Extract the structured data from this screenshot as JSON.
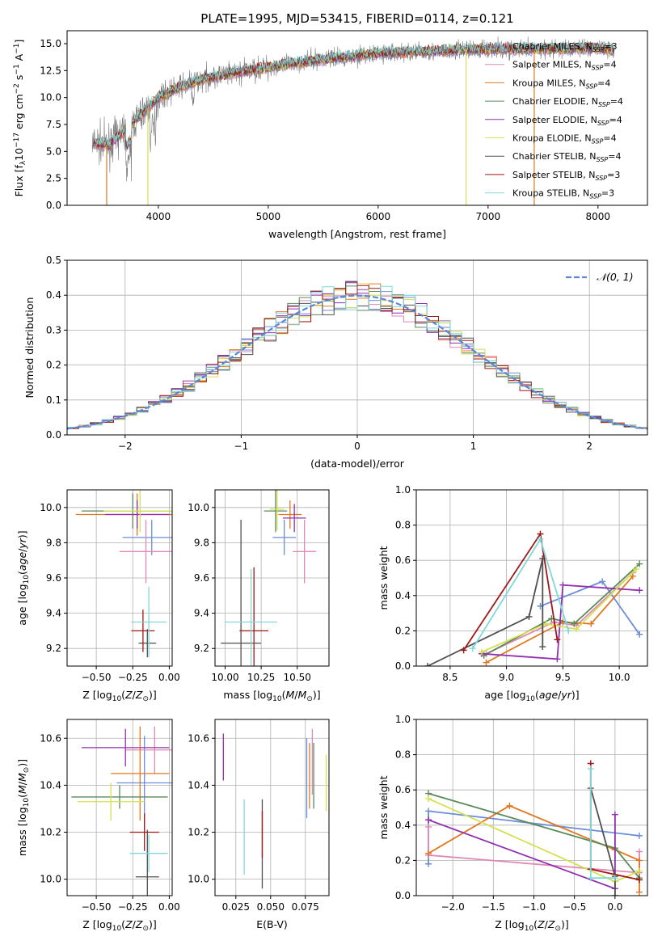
{
  "title": "PLATE=1995, MJD=53415, FIBERID=0114, z=0.121",
  "models": [
    {
      "name": "Chabrier MILES, N_SSP=3",
      "color": "#6a8ed8"
    },
    {
      "name": "Salpeter MILES, N_SSP=4",
      "color": "#e088b8"
    },
    {
      "name": "Kroupa MILES, N_SSP=4",
      "color": "#e07820"
    },
    {
      "name": "Chabrier ELODIE, N_SSP=4",
      "color": "#5a8a5a"
    },
    {
      "name": "Salpeter ELODIE, N_SSP=4",
      "color": "#9030b0"
    },
    {
      "name": "Kroupa ELODIE, N_SSP=4",
      "color": "#d4e050"
    },
    {
      "name": "Chabrier STELIB, N_SSP=4",
      "color": "#505050"
    },
    {
      "name": "Salpeter STELIB, N_SSP=3",
      "color": "#a01818"
    },
    {
      "name": "Kroupa STELIB, N_SSP=3",
      "color": "#80d8d8"
    }
  ],
  "legend_entries": [
    {
      "main": "Chabrier MILES, N",
      "sub": "SSP",
      "tail": "=3"
    },
    {
      "main": "Salpeter MILES, N",
      "sub": "SSP",
      "tail": "=4"
    },
    {
      "main": "Kroupa MILES, N",
      "sub": "SSP",
      "tail": "=4"
    },
    {
      "main": "Chabrier ELODIE, N",
      "sub": "SSP",
      "tail": "=4"
    },
    {
      "main": "Salpeter ELODIE, N",
      "sub": "SSP",
      "tail": "=4"
    },
    {
      "main": "Kroupa ELODIE, N",
      "sub": "SSP",
      "tail": "=4"
    },
    {
      "main": "Chabrier STELIB, N",
      "sub": "SSP",
      "tail": "=4"
    },
    {
      "main": "Salpeter STELIB, N",
      "sub": "SSP",
      "tail": "=3"
    },
    {
      "main": "Kroupa STELIB, N",
      "sub": "SSP",
      "tail": "=3"
    }
  ],
  "chart_data": [
    {
      "id": "spectrum",
      "type": "line",
      "title": "PLATE=1995, MJD=53415, FIBERID=0114, z=0.121",
      "xlabel": "wavelength [Angstrom, rest frame]",
      "ylabel": "Flux [f_λ 10^-17 erg cm^-2 s^-1 A^-1]",
      "xlim": [
        3170,
        8450
      ],
      "ylim": [
        0,
        16.2
      ],
      "xticks": [
        4000,
        5000,
        6000,
        7000,
        8000
      ],
      "yticks": [
        0,
        2.5,
        5,
        7.5,
        10,
        12.5,
        15
      ],
      "ytick_labels": [
        "0.0",
        "2.5",
        "5.0",
        "7.5",
        "10.0",
        "12.5",
        "15.0"
      ],
      "data_observed": "grey noisy spectrum, ~5.5 at 3400 A rising to ~14 at 5000 A and ~15 by 7500 A",
      "curve_points": [
        [
          3400,
          5.8
        ],
        [
          3550,
          5.6
        ],
        [
          3700,
          7
        ],
        [
          3850,
          8.5
        ],
        [
          4000,
          10
        ],
        [
          4200,
          11
        ],
        [
          4400,
          11.7
        ],
        [
          4700,
          12.3
        ],
        [
          5000,
          12.8
        ],
        [
          5300,
          13.3
        ],
        [
          5700,
          13.8
        ],
        [
          6000,
          14.1
        ],
        [
          6500,
          14.3
        ],
        [
          7000,
          14.5
        ],
        [
          7500,
          14.5
        ],
        [
          8000,
          14.6
        ],
        [
          8150,
          14.4
        ]
      ],
      "grid": false,
      "legend": "upper right"
    },
    {
      "id": "residuals",
      "type": "histogram",
      "xlabel": "(data-model)/error",
      "ylabel": "Normed distribution",
      "xlim": [
        -2.5,
        2.5
      ],
      "ylim": [
        0,
        0.5
      ],
      "xticks": [
        -2,
        -1,
        0,
        1,
        2
      ],
      "xtick_labels": [
        "−2",
        "−1",
        "0",
        "1",
        "2"
      ],
      "yticks": [
        0,
        0.1,
        0.2,
        0.3,
        0.4,
        0.5
      ],
      "ytick_labels": [
        "0.0",
        "0.1",
        "0.2",
        "0.3",
        "0.4",
        "0.5"
      ],
      "bin_width": 0.1,
      "gaussian_label": "𝒩(0, 1)",
      "gaussian_color": "#5b86d6",
      "grid": true,
      "legend": "upper right"
    },
    {
      "id": "age_vs_Z",
      "type": "errorbar",
      "xlabel": "Z [log10(Z/Z⊙)]",
      "ylabel": "age [log10(age/yr)]",
      "xlim": [
        -0.7,
        0.02
      ],
      "ylim": [
        9.1,
        10.1
      ],
      "xticks": [
        -0.5,
        -0.25,
        0.0
      ],
      "xtick_labels": [
        "−0.50",
        "−0.25",
        "0.00"
      ],
      "yticks": [
        9.2,
        9.4,
        9.6,
        9.8,
        10.0
      ],
      "ytick_labels": [
        "9.2",
        "9.4",
        "9.6",
        "9.8",
        "10.0"
      ],
      "points": [
        {
          "x": -0.12,
          "xerr": 0.2,
          "y": 9.83,
          "yerr": 0.1
        },
        {
          "x": -0.16,
          "xerr": 0.18,
          "y": 9.75,
          "yerr": 0.18
        },
        {
          "x": -0.22,
          "xerr": 0.42,
          "y": 9.96,
          "yerr": 0.12
        },
        {
          "x": -0.25,
          "xerr": 0.35,
          "y": 9.98,
          "yerr": 0.1
        },
        {
          "x": -0.22,
          "xerr": 0.22,
          "y": 9.96,
          "yerr": 0.08
        },
        {
          "x": -0.2,
          "xerr": 0.25,
          "y": 9.98,
          "yerr": 0.12
        },
        {
          "x": -0.15,
          "xerr": 0.06,
          "y": 9.23,
          "yerr": 0.08
        },
        {
          "x": -0.18,
          "xerr": 0.08,
          "y": 9.3,
          "yerr": 0.12
        },
        {
          "x": -0.14,
          "xerr": 0.12,
          "y": 9.35,
          "yerr": 0.2
        }
      ],
      "grid": true
    },
    {
      "id": "age_vs_mass",
      "type": "errorbar",
      "xlabel": "mass [log10(M/M⊙)]",
      "ylabel": "",
      "xlim": [
        9.93,
        10.72
      ],
      "ylim": [
        9.1,
        10.1
      ],
      "xticks": [
        10.0,
        10.25,
        10.5
      ],
      "xtick_labels": [
        "10.00",
        "10.25",
        "10.50"
      ],
      "yticks": [
        9.2,
        9.4,
        9.6,
        9.8,
        10.0
      ],
      "ytick_labels": [
        "9.2",
        "9.4",
        "9.6",
        "9.8",
        "10.0"
      ],
      "points": [
        {
          "x": 10.41,
          "xerr": 0.08,
          "y": 9.83,
          "yerr": 0.1
        },
        {
          "x": 10.55,
          "xerr": 0.08,
          "y": 9.75,
          "yerr": 0.18
        },
        {
          "x": 10.45,
          "xerr": 0.08,
          "y": 9.96,
          "yerr": 0.08
        },
        {
          "x": 10.35,
          "xerr": 0.08,
          "y": 9.98,
          "yerr": 0.12
        },
        {
          "x": 10.48,
          "xerr": 0.08,
          "y": 9.94,
          "yerr": 0.08
        },
        {
          "x": 10.36,
          "xerr": 0.05,
          "y": 9.99,
          "yerr": 0.12
        },
        {
          "x": 10.11,
          "xerr": 0.14,
          "y": 9.23,
          "yerr": 0.7
        },
        {
          "x": 10.2,
          "xerr": 0.1,
          "y": 9.3,
          "yerr": 0.36
        },
        {
          "x": 10.18,
          "xerr": 0.18,
          "y": 9.35,
          "yerr": 0.3
        }
      ],
      "grid": true
    },
    {
      "id": "weight_vs_age",
      "type": "line",
      "xlabel": "age [log10(age/yr)]",
      "ylabel": "mass weight",
      "xlim": [
        8.2,
        10.25
      ],
      "ylim": [
        0,
        1
      ],
      "xticks": [
        8.5,
        9.0,
        9.5,
        10.0
      ],
      "xtick_labels": [
        "8.5",
        "9.0",
        "9.5",
        "10.0"
      ],
      "yticks": [
        0,
        0.2,
        0.4,
        0.6,
        0.8,
        1.0
      ],
      "ytick_labels": [
        "0.0",
        "0.2",
        "0.4",
        "0.6",
        "0.8",
        "1.0"
      ],
      "series": [
        {
          "x": [
            9.3,
            9.85,
            10.18
          ],
          "y": [
            0.34,
            0.48,
            0.18
          ]
        },
        {
          "x": [
            8.82,
            9.42,
            9.62,
            10.12
          ],
          "y": [
            0.07,
            0.25,
            0.23,
            0.53
          ]
        },
        {
          "x": [
            8.82,
            9.5,
            9.75,
            10.12
          ],
          "y": [
            0.02,
            0.25,
            0.24,
            0.51
          ]
        },
        {
          "x": [
            8.8,
            9.4,
            9.6,
            10.18
          ],
          "y": [
            0.06,
            0.27,
            0.24,
            0.58
          ]
        },
        {
          "x": [
            8.78,
            9.45,
            9.5,
            10.18
          ],
          "y": [
            0.07,
            0.04,
            0.46,
            0.43
          ]
        },
        {
          "x": [
            8.78,
            9.35,
            9.62,
            10.15
          ],
          "y": [
            0.08,
            0.24,
            0.21,
            0.55
          ]
        },
        {
          "x": [
            8.3,
            9.2,
            9.32,
            9.32
          ],
          "y": [
            0.0,
            0.28,
            0.61,
            0.11
          ]
        },
        {
          "x": [
            8.62,
            9.3,
            9.45
          ],
          "y": [
            0.09,
            0.75,
            0.15
          ]
        },
        {
          "x": [
            8.7,
            9.3,
            9.55
          ],
          "y": [
            0.1,
            0.72,
            0.2
          ]
        }
      ],
      "grid": true
    },
    {
      "id": "mass_vs_Z",
      "type": "errorbar",
      "xlabel": "Z [log10(Z/Z⊙)]",
      "ylabel": "mass [log10(M/M⊙)]",
      "xlim": [
        -0.7,
        0.02
      ],
      "ylim": [
        9.93,
        10.68
      ],
      "xticks": [
        -0.5,
        -0.25,
        0.0
      ],
      "xtick_labels": [
        "−0.50",
        "−0.25",
        "0.00"
      ],
      "yticks": [
        10.0,
        10.2,
        10.4,
        10.6
      ],
      "ytick_labels": [
        "10.0",
        "10.2",
        "10.4",
        "10.6"
      ],
      "points": [
        {
          "x": -0.17,
          "xerr": 0.19,
          "y": 10.41,
          "yerr": 0.2
        },
        {
          "x": -0.1,
          "xerr": 0.2,
          "y": 10.55,
          "yerr": 0.1
        },
        {
          "x": -0.2,
          "xerr": 0.2,
          "y": 10.45,
          "yerr": 0.2
        },
        {
          "x": -0.34,
          "xerr": 0.33,
          "y": 10.35,
          "yerr": 0.05
        },
        {
          "x": -0.3,
          "xerr": 0.3,
          "y": 10.56,
          "yerr": 0.08
        },
        {
          "x": -0.4,
          "xerr": 0.23,
          "y": 10.33,
          "yerr": 0.08
        },
        {
          "x": -0.15,
          "xerr": 0.08,
          "y": 10.01,
          "yerr": 0.2
        },
        {
          "x": -0.17,
          "xerr": 0.1,
          "y": 10.2,
          "yerr": 0.08
        },
        {
          "x": -0.14,
          "xerr": 0.13,
          "y": 10.11,
          "yerr": 0.08
        }
      ],
      "grid": true
    },
    {
      "id": "mass_vs_EBV",
      "type": "errorbar",
      "xlabel": "E(B-V)",
      "ylabel": "",
      "xlim": [
        0.01,
        0.092
      ],
      "ylim": [
        9.93,
        10.68
      ],
      "xticks": [
        0.025,
        0.05,
        0.075
      ],
      "xtick_labels": [
        "0.025",
        "0.050",
        "0.075"
      ],
      "yticks": [
        10.0,
        10.2,
        10.4,
        10.6
      ],
      "ytick_labels": [
        "10.0",
        "10.2",
        "10.4",
        "10.6"
      ],
      "points": [
        {
          "x": 0.076,
          "yerr": 0.17,
          "y": 10.43
        },
        {
          "x": 0.08,
          "yerr": 0.14,
          "y": 10.5
        },
        {
          "x": 0.078,
          "yerr": 0.14,
          "y": 10.44
        },
        {
          "x": 0.081,
          "yerr": 0.14,
          "y": 10.44
        },
        {
          "x": 0.016,
          "yerr": 0.1,
          "y": 10.52
        },
        {
          "x": 0.09,
          "yerr": 0.12,
          "y": 10.41
        },
        {
          "x": 0.044,
          "yerr": 0.19,
          "y": 10.15
        },
        {
          "x": 0.044,
          "yerr": 0.1,
          "y": 10.19
        },
        {
          "x": 0.031,
          "yerr": 0.16,
          "y": 10.18
        }
      ],
      "grid": true
    },
    {
      "id": "weight_vs_Z",
      "type": "line",
      "xlabel": "Z [log10(Z/Z⊙)]",
      "ylabel": "mass weight",
      "xlim": [
        -2.45,
        0.4
      ],
      "ylim": [
        0,
        1
      ],
      "xticks": [
        -2.0,
        -1.5,
        -1.0,
        -0.5,
        0.0
      ],
      "xtick_labels": [
        "−2.0",
        "−1.5",
        "−1.0",
        "−0.5",
        "0.0"
      ],
      "yticks": [
        0,
        0.2,
        0.4,
        0.6,
        0.8,
        1.0
      ],
      "ytick_labels": [
        "0.0",
        "0.2",
        "0.4",
        "0.6",
        "0.8",
        "1.0"
      ],
      "series": [
        {
          "x": [
            -2.3,
            -2.3,
            0.3
          ],
          "y": [
            0.18,
            0.48,
            0.34
          ]
        },
        {
          "x": [
            -2.3,
            -2.3,
            0.3,
            0.3
          ],
          "y": [
            0.39,
            0.23,
            0.13,
            0.25
          ]
        },
        {
          "x": [
            -2.3,
            -1.3,
            0.0,
            0.3,
            0.3
          ],
          "y": [
            0.24,
            0.51,
            0.26,
            0.2,
            0.02
          ]
        },
        {
          "x": [
            -2.3,
            0.0,
            0.3
          ],
          "y": [
            0.58,
            0.27,
            0.1
          ]
        },
        {
          "x": [
            -2.3,
            0.0,
            0.0
          ],
          "y": [
            0.43,
            0.04,
            0.46
          ]
        },
        {
          "x": [
            -2.3,
            0.0,
            0.3
          ],
          "y": [
            0.55,
            0.08,
            0.14
          ]
        },
        {
          "x": [
            -0.3,
            0.0,
            0.0
          ],
          "y": [
            0.61,
            0.11,
            0.0
          ]
        },
        {
          "x": [
            -0.3,
            -0.3,
            0.3
          ],
          "y": [
            0.75,
            0.15,
            0.09
          ]
        },
        {
          "x": [
            -0.3,
            -0.3,
            0.0
          ],
          "y": [
            0.72,
            0.1,
            0.1
          ]
        }
      ],
      "grid": true
    }
  ]
}
